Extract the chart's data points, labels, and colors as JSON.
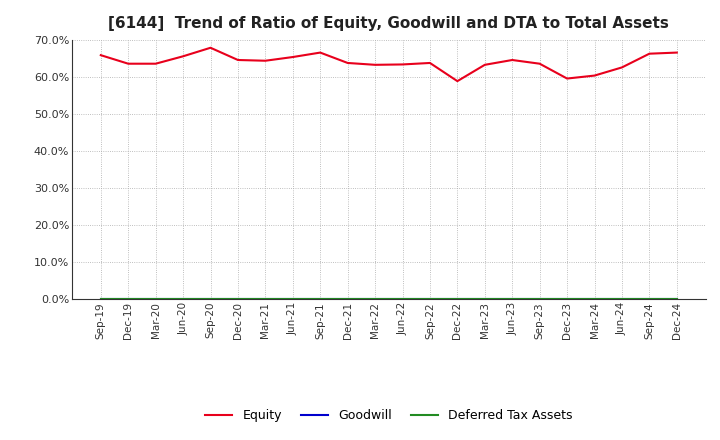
{
  "title": "[6144]  Trend of Ratio of Equity, Goodwill and DTA to Total Assets",
  "x_labels": [
    "Sep-19",
    "Dec-19",
    "Mar-20",
    "Jun-20",
    "Sep-20",
    "Dec-20",
    "Mar-21",
    "Jun-21",
    "Sep-21",
    "Dec-21",
    "Mar-22",
    "Jun-22",
    "Sep-22",
    "Dec-22",
    "Mar-23",
    "Jun-23",
    "Sep-23",
    "Dec-23",
    "Mar-24",
    "Jun-24",
    "Sep-24",
    "Dec-24"
  ],
  "equity": [
    65.8,
    63.5,
    63.5,
    65.5,
    67.8,
    64.5,
    64.3,
    65.3,
    66.5,
    63.7,
    63.2,
    63.3,
    63.7,
    58.8,
    63.2,
    64.5,
    63.5,
    59.5,
    60.3,
    62.5,
    66.2,
    66.5
  ],
  "goodwill": [
    0.0,
    0.0,
    0.0,
    0.0,
    0.0,
    0.0,
    0.0,
    0.0,
    0.0,
    0.0,
    0.0,
    0.0,
    0.0,
    0.0,
    0.0,
    0.0,
    0.0,
    0.0,
    0.0,
    0.0,
    0.0,
    0.0
  ],
  "dta": [
    0.0,
    0.0,
    0.0,
    0.0,
    0.0,
    0.0,
    0.0,
    0.0,
    0.0,
    0.0,
    0.0,
    0.0,
    0.0,
    0.0,
    0.0,
    0.0,
    0.0,
    0.0,
    0.0,
    0.0,
    0.0,
    0.0
  ],
  "equity_color": "#e8001c",
  "goodwill_color": "#0000cd",
  "dta_color": "#228b22",
  "ylim": [
    0.0,
    70.0
  ],
  "yticks": [
    0.0,
    10.0,
    20.0,
    30.0,
    40.0,
    50.0,
    60.0,
    70.0
  ],
  "background_color": "#ffffff",
  "grid_color": "#aaaaaa",
  "title_fontsize": 11,
  "legend_entries": [
    "Equity",
    "Goodwill",
    "Deferred Tax Assets"
  ]
}
